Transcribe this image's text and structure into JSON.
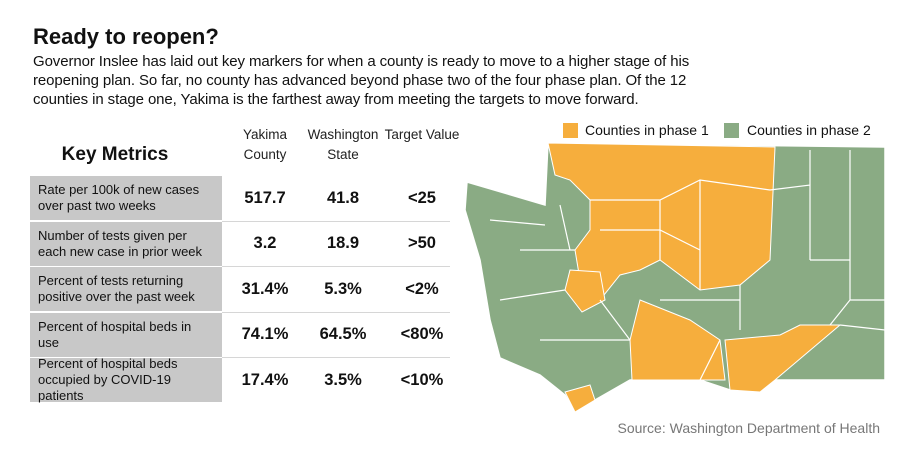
{
  "header": {
    "title": "Ready to reopen?",
    "description": [
      "Governor Inslee has laid out key markers for when a county is ready to move to a higher stage of his",
      "reopening plan.  So far, no county has advanced beyond phase two of the four phase plan.  Of the 12",
      "counties in stage one, Yakima is the farthest away from meeting the targets to move forward."
    ]
  },
  "table": {
    "title": "Key Metrics",
    "columns": [
      "Yakima County",
      "Washington State",
      "Target Value"
    ],
    "rows": [
      [
        "Rate per 100k of new cases over past two weeks",
        "517.7",
        "41.8",
        "<25"
      ],
      [
        "Number of tests given per each new case  in prior week",
        "3.2",
        "18.9",
        ">50"
      ],
      [
        "Percent of tests returning positive over the past week",
        "31.4%",
        "5.3%",
        "<2%"
      ],
      [
        "Percent of hospital beds in use",
        "74.1%",
        "64.5%",
        "<80%"
      ],
      [
        "Percent of hospital beds occupied by COVID-19 patients",
        "17.4%",
        "3.5%",
        "<10%"
      ]
    ]
  },
  "legend": [
    {
      "label": "Counties in phase 1",
      "color": "#f6ae3d"
    },
    {
      "label": "Counties in phase 2",
      "color": "#8aab84"
    }
  ],
  "source": "Source: Washington Department of Health"
}
